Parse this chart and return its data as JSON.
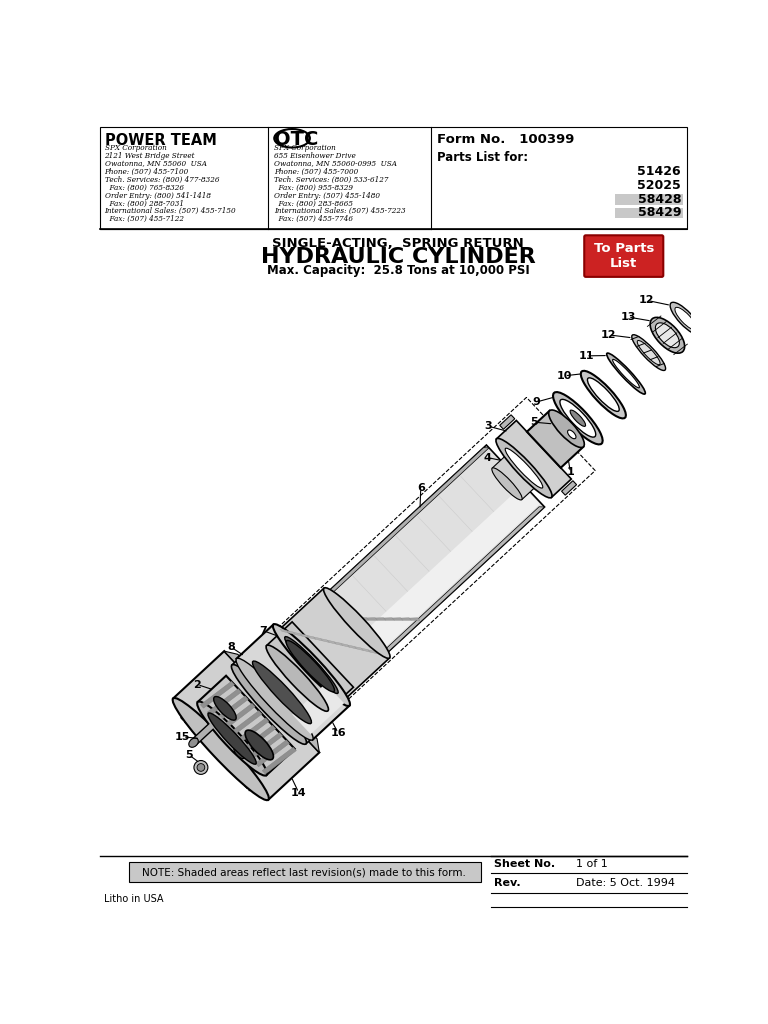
{
  "title_sub": "SINGLE-ACTING,  SPRING RETURN",
  "title_main": "HYDRAULIC CYLINDER",
  "title_cap": "Max. Capacity:  25.8 Tons at 10,000 PSI",
  "form_no": "Form No.   100399",
  "parts_list_for": "Parts List for:",
  "part_numbers": [
    "51426",
    "52025",
    "58428",
    "58429"
  ],
  "shaded_parts": [
    "58428",
    "58429"
  ],
  "powerteam_name": "POWER TEAM",
  "powerteam_lines": [
    "SPX Corporation",
    "2121 West Bridge Street",
    "Owatonna, MN 55060  USA",
    "Phone: (507) 455-7100",
    "Tech. Services: (800) 477-8326",
    "  Fax: (800) 765-8326",
    "Order Entry: (800) 541-1418",
    "  Fax: (800) 288-7031",
    "International Sales: (507) 455-7150",
    "  Fax: (507) 455-7122"
  ],
  "otc_name": "OTC",
  "otc_lines": [
    "SPX Corporation",
    "655 Eisenhower Drive",
    "Owatonna, MN 55060-0995  USA",
    "Phone: (507) 455-7000",
    "Tech. Services: (800) 533-6127",
    "  Fax: (800) 955-8329",
    "Order Entry: (507) 455-1480",
    "  Fax: (800) 283-8665",
    "International Sales: (507) 455-7223",
    "  Fax: (507) 455-7746"
  ],
  "note_text": "NOTE: Shaded areas reflect last revision(s) made to this form.",
  "sheet_no": "Sheet No.",
  "sheet_val": "1 of 1",
  "rev_label": "Rev.",
  "rev_date": "Date: 5 Oct. 1994",
  "litho": "Litho in USA",
  "to_parts_list": "To Parts\nList",
  "bg_color": "#ffffff",
  "red_button_color": "#cc2222",
  "note_bg": "#c8c8c8",
  "shaded_bg": "#c8c8c8"
}
